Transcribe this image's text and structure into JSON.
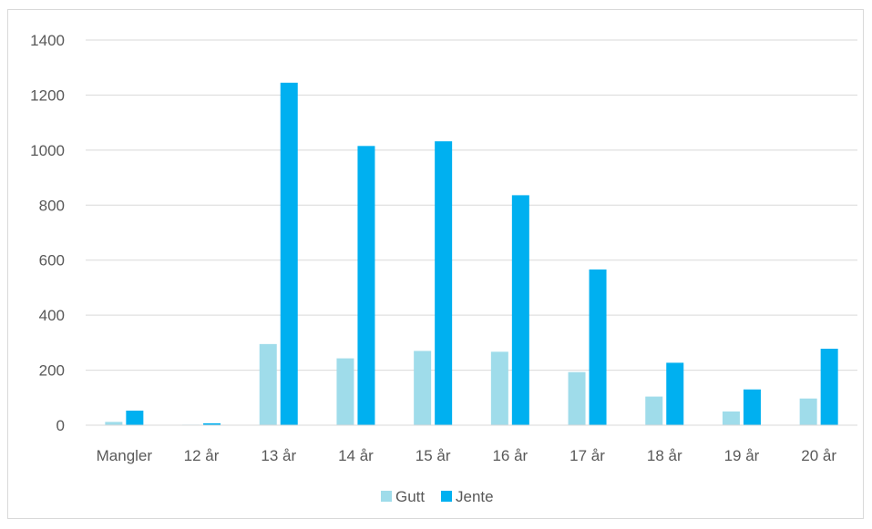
{
  "chart_data": {
    "type": "bar",
    "categories": [
      "Mangler",
      "12 år",
      "13 år",
      "14 år",
      "15 år",
      "16 år",
      "17 år",
      "18 år",
      "19 år",
      "20 år"
    ],
    "series": [
      {
        "name": "Gutt",
        "color": "#9fdcea",
        "values": [
          12,
          2,
          295,
          243,
          270,
          267,
          193,
          104,
          50,
          97
        ]
      },
      {
        "name": "Jente",
        "color": "#00b0f0",
        "values": [
          53,
          7,
          1245,
          1015,
          1032,
          836,
          566,
          227,
          130,
          278
        ]
      }
    ],
    "yticks": [
      "0",
      "200",
      "400",
      "600",
      "800",
      "1000",
      "1200",
      "1400"
    ],
    "ylim": [
      0,
      1400
    ],
    "grid": true,
    "legend": "bottom-center",
    "title": "",
    "xlabel": "",
    "ylabel": ""
  }
}
